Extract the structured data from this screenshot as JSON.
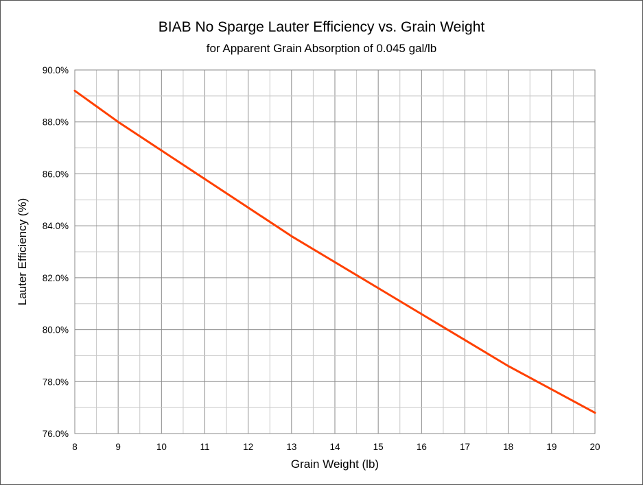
{
  "chart_data": {
    "type": "line",
    "title": "BIAB No Sparge Lauter Efficiency vs. Grain Weight",
    "subtitle": "for Apparent Grain Absorption of 0.045 gal/lb",
    "xlabel": "Grain Weight (lb)",
    "ylabel": "Lauter Efficiency (%)",
    "xlim": [
      8,
      20
    ],
    "ylim": [
      76.0,
      90.0
    ],
    "x_ticks": [
      "8",
      "9",
      "10",
      "11",
      "12",
      "13",
      "14",
      "15",
      "16",
      "17",
      "18",
      "19",
      "20"
    ],
    "y_ticks": [
      "76.0%",
      "78.0%",
      "80.0%",
      "82.0%",
      "84.0%",
      "86.0%",
      "88.0%",
      "90.0%"
    ],
    "grid": true,
    "legend": "none",
    "series": [
      {
        "color": "#ff4000",
        "x": [
          8,
          9,
          10,
          11,
          12,
          13,
          14,
          15,
          16,
          17,
          18,
          19,
          20
        ],
        "y": [
          89.2,
          88.0,
          86.9,
          85.8,
          84.7,
          83.6,
          82.6,
          81.6,
          80.6,
          79.6,
          78.6,
          77.7,
          76.8
        ]
      }
    ]
  }
}
